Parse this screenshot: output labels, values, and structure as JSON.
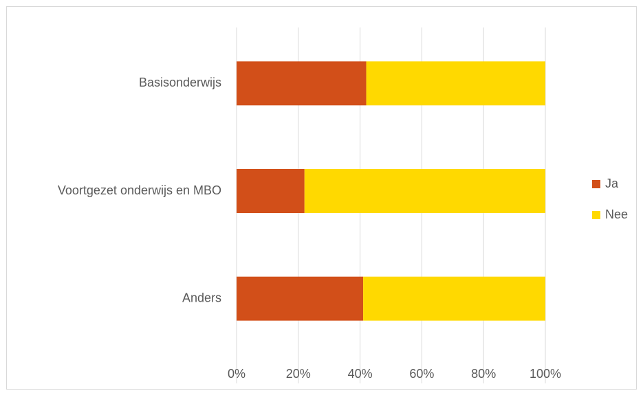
{
  "chart_data": {
    "type": "stacked-bar-horizontal",
    "categories": [
      "Basisonderwijs",
      "Voortgezet onderwijs en MBO",
      "Anders"
    ],
    "series": [
      {
        "name": "Ja",
        "color": "#d24f19",
        "values": [
          42,
          22,
          41
        ]
      },
      {
        "name": "Nee",
        "color": "#ffd900",
        "values": [
          58,
          78,
          59
        ]
      }
    ],
    "xlim": [
      0,
      100
    ],
    "xticks": [
      {
        "value": 0,
        "label": "0%"
      },
      {
        "value": 20,
        "label": "20%"
      },
      {
        "value": 40,
        "label": "40%"
      },
      {
        "value": 60,
        "label": "60%"
      },
      {
        "value": 80,
        "label": "80%"
      },
      {
        "value": 100,
        "label": "100%"
      }
    ],
    "grid": true,
    "legend": "right"
  }
}
